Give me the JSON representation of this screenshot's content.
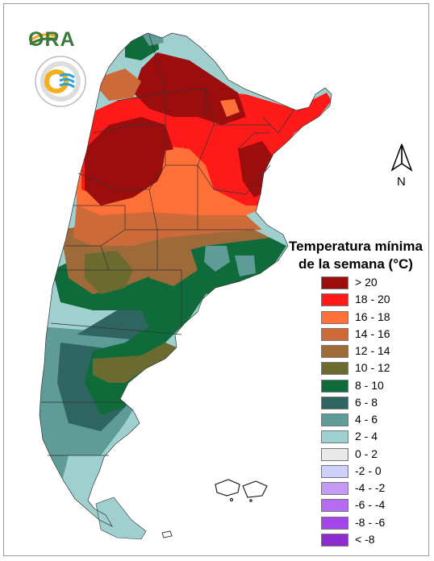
{
  "legend": {
    "title_line1": "Temperatura mínima",
    "title_line2": "de la semana (°C)",
    "items": [
      {
        "label": "> 20",
        "color": "#9c0d0d"
      },
      {
        "label": "18 - 20",
        "color": "#ff1a1a"
      },
      {
        "label": "16 - 18",
        "color": "#ff7038"
      },
      {
        "label": "14 - 16",
        "color": "#cc6a3a"
      },
      {
        "label": "12 - 14",
        "color": "#9e6a3a"
      },
      {
        "label": "10 - 12",
        "color": "#6b6a2f"
      },
      {
        "label": "8 - 10",
        "color": "#0f6b3a"
      },
      {
        "label": "6 - 8",
        "color": "#2f6560"
      },
      {
        "label": "4 - 6",
        "color": "#5f9c98"
      },
      {
        "label": "2 - 4",
        "color": "#9fd0cf"
      },
      {
        "label": "0 - 2",
        "color": "#e9e9e9"
      },
      {
        "label": "-2 - 0",
        "color": "#cfd0fa"
      },
      {
        "label": "-4 - -2",
        "color": "#c49af2"
      },
      {
        "label": "-6 - -4",
        "color": "#b56cf0"
      },
      {
        "label": "-8 - -6",
        "color": "#a445ea"
      },
      {
        "label": "< -8",
        "color": "#8e2ccf"
      }
    ]
  },
  "north_arrow": {
    "label": "N"
  },
  "logos": {
    "ora_text": "ORA"
  }
}
